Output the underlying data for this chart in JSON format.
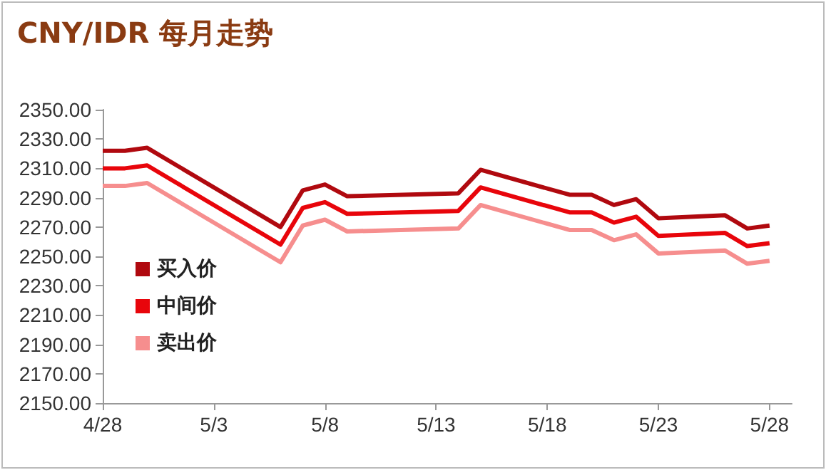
{
  "chart_data": {
    "type": "line",
    "title": "CNY/IDR 每月走势",
    "x": [
      "--04-28",
      "--04-29",
      "--04-30",
      "--05-06",
      "--05-07",
      "--05-08",
      "--05-09",
      "--05-14",
      "--05-15",
      "--05-19",
      "--05-20",
      "--05-21",
      "--05-22",
      "--05-23",
      "--05-26",
      "--05-27",
      "--05-28"
    ],
    "series": [
      {
        "name": "买入价",
        "color": "#b0090f",
        "values": [
          2322,
          2322,
          2324,
          2270,
          2295,
          2299,
          2291,
          2293,
          2309,
          2292,
          2292,
          2285,
          2289,
          2276,
          2278,
          2269,
          2271
        ]
      },
      {
        "name": "中间价",
        "color": "#e8050b",
        "values": [
          2310,
          2310,
          2312,
          2258,
          2283,
          2287,
          2279,
          2281,
          2297,
          2280,
          2280,
          2273,
          2277,
          2264,
          2266,
          2257,
          2259
        ]
      },
      {
        "name": "卖出价",
        "color": "#f68e8e",
        "values": [
          2298,
          2298,
          2300,
          2246,
          2271,
          2275,
          2267,
          2269,
          2285,
          2268,
          2268,
          2261,
          2265,
          2252,
          2254,
          2245,
          2247
        ]
      }
    ],
    "xlim": [
      "--04-28",
      "--05-29"
    ],
    "xticks": [
      {
        "value": "--04-28",
        "label": "4/28"
      },
      {
        "value": "--05-03",
        "label": "5/3"
      },
      {
        "value": "--05-08",
        "label": "5/8"
      },
      {
        "value": "--05-13",
        "label": "5/13"
      },
      {
        "value": "--05-18",
        "label": "5/18"
      },
      {
        "value": "--05-23",
        "label": "5/23"
      },
      {
        "value": "--05-28",
        "label": "5/28"
      }
    ],
    "ylim": [
      2150,
      2350
    ],
    "yticks": [
      {
        "value": 2150,
        "label": "2150.00"
      },
      {
        "value": 2170,
        "label": "2170.00"
      },
      {
        "value": 2190,
        "label": "2190.00"
      },
      {
        "value": 2210,
        "label": "2210.00"
      },
      {
        "value": 2230,
        "label": "2230.00"
      },
      {
        "value": 2250,
        "label": "2250.00"
      },
      {
        "value": 2270,
        "label": "2270.00"
      },
      {
        "value": 2290,
        "label": "2290.00"
      },
      {
        "value": 2310,
        "label": "2310.00"
      },
      {
        "value": 2330,
        "label": "2330.00"
      },
      {
        "value": 2350,
        "label": "2350.00"
      }
    ],
    "grid": false,
    "legend": "bottom left",
    "marker": "none",
    "line_style": "solid"
  }
}
